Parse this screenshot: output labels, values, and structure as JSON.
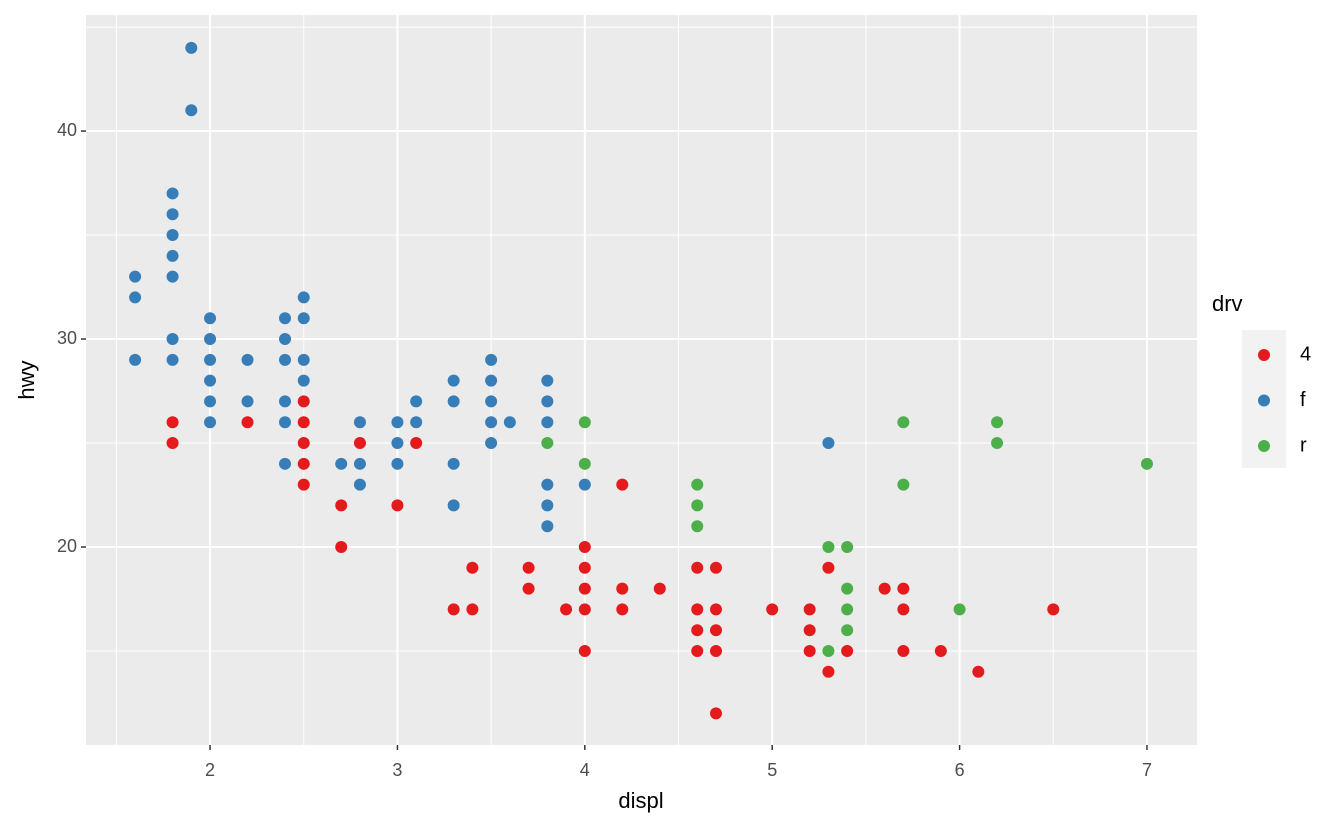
{
  "chart_data": {
    "type": "scatter",
    "x_label": "displ",
    "y_label": "hwy",
    "legend_title": "drv",
    "legend_position": "right",
    "grid": true,
    "xlim": [
      1.338,
      7.267
    ],
    "ylim": [
      10.48,
      45.58
    ],
    "xticks": [
      2,
      3,
      4,
      5,
      6,
      7
    ],
    "yticks": [
      20,
      30,
      40
    ],
    "x_minor_grid": [
      1.5,
      2.5,
      3.5,
      4.5,
      5.5,
      6.5
    ],
    "y_minor_grid": [
      15,
      25,
      35,
      45
    ],
    "series": [
      {
        "name": "4",
        "color": "#E41A1C",
        "x": [
          1.8,
          1.8,
          2.2,
          2.5,
          2.5,
          2.5,
          2.5,
          2.5,
          2.7,
          2.7,
          2.8,
          3.0,
          3.1,
          3.3,
          3.4,
          3.4,
          3.7,
          3.7,
          3.9,
          4.0,
          4.0,
          4.0,
          4.0,
          4.0,
          4.2,
          4.2,
          4.2,
          4.4,
          4.6,
          4.6,
          4.6,
          4.6,
          4.7,
          4.7,
          4.7,
          4.7,
          4.7,
          5.0,
          5.2,
          5.2,
          5.2,
          5.3,
          5.3,
          5.4,
          5.6,
          5.7,
          5.7,
          5.7,
          5.9,
          6.1,
          6.5
        ],
        "values": [
          26,
          25,
          26,
          27,
          26,
          25,
          24,
          23,
          22,
          20,
          25,
          22,
          25,
          17,
          19,
          17,
          19,
          18,
          17,
          20,
          19,
          18,
          17,
          15,
          23,
          18,
          17,
          18,
          19,
          17,
          16,
          15,
          19,
          17,
          16,
          15,
          12,
          17,
          17,
          16,
          15,
          19,
          14,
          15,
          18,
          18,
          17,
          15,
          15,
          14,
          17
        ]
      },
      {
        "name": "f",
        "color": "#377EB8",
        "x": [
          1.6,
          1.6,
          1.6,
          1.8,
          1.8,
          1.8,
          1.8,
          1.8,
          1.8,
          1.8,
          1.9,
          1.9,
          2.0,
          2.0,
          2.0,
          2.0,
          2.0,
          2.0,
          2.2,
          2.2,
          2.4,
          2.4,
          2.4,
          2.4,
          2.4,
          2.4,
          2.5,
          2.5,
          2.5,
          2.5,
          2.7,
          2.8,
          2.8,
          2.8,
          3.0,
          3.0,
          3.0,
          3.1,
          3.1,
          3.3,
          3.3,
          3.3,
          3.3,
          3.5,
          3.5,
          3.5,
          3.5,
          3.5,
          3.6,
          3.8,
          3.8,
          3.8,
          3.8,
          3.8,
          3.8,
          4.0,
          5.3
        ],
        "values": [
          33,
          32,
          29,
          37,
          36,
          35,
          34,
          33,
          30,
          29,
          44,
          41,
          31,
          30,
          29,
          28,
          27,
          26,
          29,
          27,
          31,
          30,
          29,
          27,
          26,
          24,
          32,
          31,
          29,
          28,
          24,
          26,
          24,
          23,
          26,
          25,
          24,
          27,
          26,
          28,
          27,
          24,
          22,
          29,
          28,
          27,
          26,
          25,
          26,
          28,
          27,
          26,
          23,
          22,
          21,
          23,
          25
        ]
      },
      {
        "name": "r",
        "color": "#4DAF4A",
        "x": [
          3.8,
          4.0,
          4.0,
          4.6,
          4.6,
          4.6,
          5.3,
          5.3,
          5.4,
          5.4,
          5.4,
          5.4,
          5.7,
          5.7,
          6.0,
          6.2,
          6.2,
          7.0
        ],
        "values": [
          25,
          26,
          24,
          23,
          22,
          21,
          20,
          15,
          20,
          18,
          17,
          16,
          26,
          23,
          17,
          26,
          25,
          24
        ]
      }
    ]
  }
}
